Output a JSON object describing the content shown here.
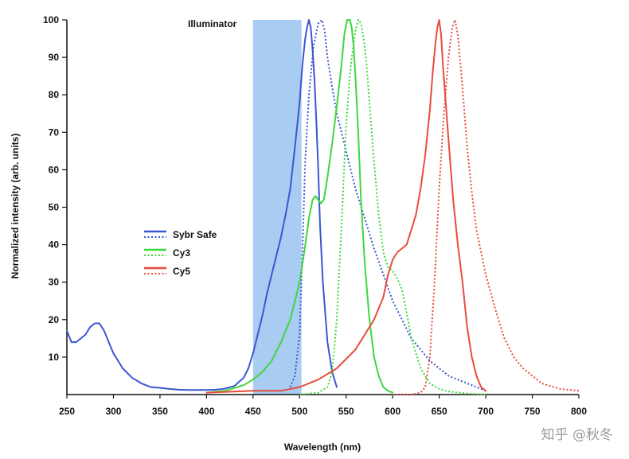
{
  "chart_data": {
    "type": "line",
    "title": "",
    "xlabel": "Wavelength (nm)",
    "ylabel": "Normalized intensity (arb. units)",
    "xlim": [
      250,
      800
    ],
    "ylim": [
      0,
      100
    ],
    "x_ticks": [
      250,
      300,
      350,
      400,
      450,
      500,
      550,
      600,
      650,
      700,
      750,
      800
    ],
    "y_ticks": [
      10,
      20,
      30,
      40,
      50,
      60,
      70,
      80,
      90,
      100
    ],
    "grid": false,
    "legend_position": "center-left",
    "annotations": [
      {
        "label": "Illuminator",
        "band": [
          450,
          502
        ],
        "color": "#a8ccf2"
      }
    ],
    "legend_entries": [
      "Sybr Safe",
      "Cy3",
      "Cy5"
    ],
    "series": [
      {
        "name": "Sybr Safe",
        "kind": "excitation",
        "style": "solid",
        "color": "#3b57d0",
        "x": [
          250,
          255,
          260,
          265,
          270,
          275,
          280,
          285,
          290,
          295,
          300,
          310,
          320,
          330,
          340,
          350,
          360,
          370,
          380,
          390,
          400,
          410,
          420,
          430,
          440,
          445,
          450,
          455,
          460,
          465,
          470,
          475,
          480,
          485,
          490,
          495,
          500,
          503,
          506,
          508,
          510,
          512,
          514,
          516,
          518,
          520,
          522,
          525,
          530,
          535,
          540
        ],
        "y": [
          17,
          14,
          14,
          15,
          16,
          18,
          19,
          19,
          17,
          14,
          11,
          7,
          4.5,
          3,
          2,
          1.8,
          1.5,
          1.3,
          1.2,
          1.2,
          1.2,
          1.3,
          1.6,
          2.3,
          4.5,
          7,
          11,
          16,
          21,
          27,
          32,
          37,
          42,
          48,
          55,
          66,
          78,
          88,
          95,
          98,
          100,
          98,
          92,
          84,
          73,
          60,
          45,
          30,
          14,
          6,
          2
        ]
      },
      {
        "name": "Sybr Safe",
        "kind": "emission",
        "style": "dotted",
        "color": "#3b57d0",
        "x": [
          490,
          495,
          500,
          503,
          506,
          510,
          515,
          520,
          524,
          527,
          530,
          535,
          540,
          545,
          550,
          560,
          570,
          580,
          590,
          600,
          620,
          640,
          660,
          680,
          700
        ],
        "y": [
          2,
          5,
          16,
          38,
          62,
          80,
          93,
          99,
          100,
          97,
          90,
          82,
          75,
          70,
          65,
          55,
          47,
          39,
          32,
          25,
          15,
          9,
          5,
          3,
          1
        ]
      },
      {
        "name": "Cy3",
        "kind": "excitation",
        "style": "solid",
        "color": "#3fd63f",
        "x": [
          400,
          420,
          440,
          450,
          460,
          470,
          480,
          490,
          500,
          505,
          510,
          514,
          517,
          520,
          523,
          526,
          530,
          535,
          540,
          545,
          548,
          551,
          554,
          556,
          558,
          560,
          563,
          566,
          570,
          575,
          580,
          585,
          590,
          595,
          600
        ],
        "y": [
          0.5,
          1,
          2.5,
          4,
          6,
          9,
          14,
          20,
          30,
          38,
          47,
          52,
          53,
          52,
          51,
          52,
          58,
          67,
          77,
          88,
          96,
          100,
          100,
          98,
          93,
          85,
          70,
          52,
          35,
          20,
          10,
          5,
          2,
          1,
          0.5
        ]
      },
      {
        "name": "Cy3",
        "kind": "emission",
        "style": "dotted",
        "color": "#3fd63f",
        "x": [
          500,
          520,
          530,
          535,
          540,
          545,
          550,
          555,
          560,
          563,
          566,
          569,
          572,
          575,
          580,
          585,
          590,
          595,
          600,
          605,
          610,
          615,
          620,
          630,
          640,
          650,
          660,
          680,
          700
        ],
        "y": [
          0,
          0.5,
          2,
          6,
          20,
          45,
          72,
          88,
          97,
          100,
          99,
          95,
          88,
          78,
          62,
          48,
          38,
          34,
          33,
          31,
          28,
          22,
          15,
          7,
          3,
          1.5,
          0.8,
          0.3,
          0
        ]
      },
      {
        "name": "Cy5",
        "kind": "excitation",
        "style": "solid",
        "color": "#e84c3d",
        "x": [
          400,
          450,
          480,
          500,
          520,
          540,
          560,
          580,
          590,
          595,
          600,
          605,
          610,
          615,
          620,
          625,
          630,
          635,
          640,
          643,
          646,
          648,
          650,
          652,
          654,
          657,
          660,
          665,
          670,
          675,
          680,
          685,
          690,
          695,
          700
        ],
        "y": [
          0.5,
          1,
          1,
          2,
          4,
          7,
          12,
          20,
          26,
          32,
          36,
          38,
          39,
          40,
          44,
          48,
          55,
          64,
          76,
          86,
          94,
          98,
          100,
          96,
          88,
          78,
          68,
          52,
          40,
          30,
          18,
          10,
          5,
          2,
          1
        ]
      },
      {
        "name": "Cy5",
        "kind": "emission",
        "style": "dotted",
        "color": "#e84c3d",
        "x": [
          600,
          620,
          630,
          635,
          640,
          645,
          650,
          655,
          660,
          664,
          667,
          670,
          675,
          680,
          685,
          690,
          700,
          710,
          720,
          730,
          740,
          750,
          760,
          780,
          800
        ],
        "y": [
          0,
          0,
          0.5,
          2,
          10,
          30,
          55,
          75,
          90,
          98,
          100,
          96,
          82,
          66,
          54,
          44,
          32,
          23,
          15,
          10,
          7,
          5,
          3,
          1.5,
          1
        ]
      }
    ]
  },
  "watermark": "知乎 @秋冬"
}
